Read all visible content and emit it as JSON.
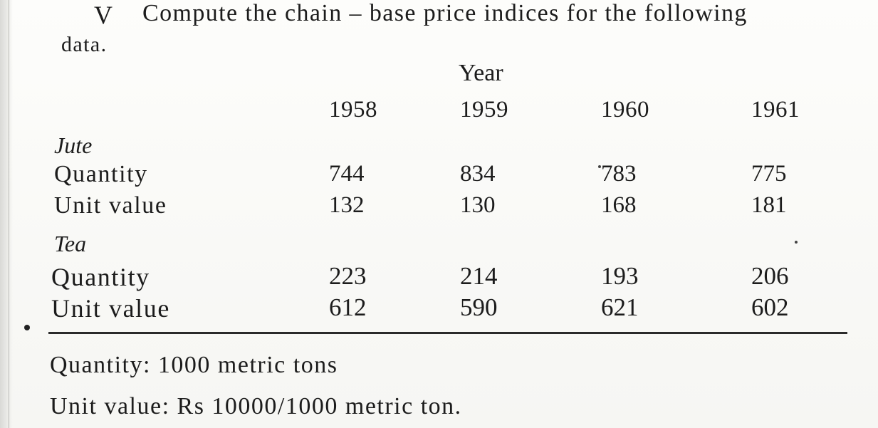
{
  "question": {
    "number": "V",
    "text_line1": "Compute the chain – base price indices for the following",
    "text_line2": "data."
  },
  "table": {
    "header_label": "Year",
    "years": [
      "1958",
      "1959",
      "1960",
      "1961"
    ],
    "groups": [
      {
        "name": "Jute",
        "rows": [
          {
            "label": "Quantity",
            "values": [
              "744",
              "834",
              "783",
              "775"
            ]
          },
          {
            "label": "Unit value",
            "values": [
              "132",
              "130",
              "168",
              "181"
            ]
          }
        ]
      },
      {
        "name": "Tea",
        "rows": [
          {
            "label": "Quantity",
            "values": [
              "223",
              "214",
              "193",
              "206"
            ]
          },
          {
            "label": "Unit value",
            "values": [
              "612",
              "590",
              "621",
              "602"
            ]
          }
        ]
      }
    ]
  },
  "notes": [
    "Quantity: 1000 metric tons",
    "Unit value: Rs 10000/1000 metric ton."
  ]
}
